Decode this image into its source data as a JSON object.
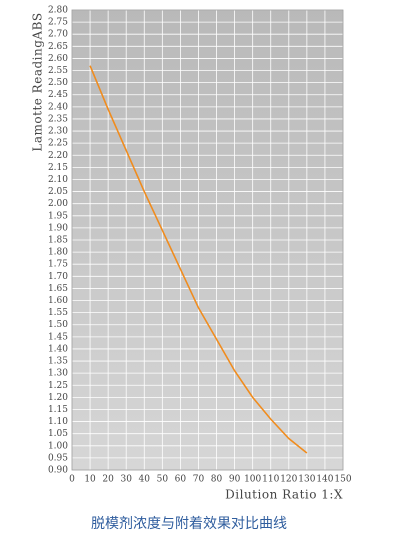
{
  "chart_data": {
    "type": "line",
    "y_label": "Lamotte ReadingABS",
    "x_label": "Dilution Ratio 1:X",
    "caption": "脱模剂浓度与附着效果对比曲线",
    "series": [
      {
        "color": "#f08c1e",
        "x": [
          10,
          20,
          30,
          40,
          50,
          60,
          70,
          80,
          90,
          100,
          110,
          120,
          130
        ],
        "values": [
          2.57,
          2.39,
          2.22,
          2.05,
          1.89,
          1.73,
          1.57,
          1.44,
          1.31,
          1.2,
          1.11,
          1.03,
          0.97
        ]
      }
    ],
    "xlim": [
      0,
      150
    ],
    "xticks": [
      0,
      10,
      20,
      30,
      40,
      50,
      60,
      70,
      80,
      90,
      100,
      110,
      120,
      130,
      140,
      150
    ],
    "ylim": [
      0.9,
      2.8
    ],
    "yticks": [
      {
        "value": 0.9,
        "label": "0.90"
      },
      {
        "value": 0.95,
        "label": "0.95"
      },
      {
        "value": 1.0,
        "label": "1.00"
      },
      {
        "value": 1.05,
        "label": "1.05"
      },
      {
        "value": 1.1,
        "label": "1.10"
      },
      {
        "value": 1.15,
        "label": "1.15"
      },
      {
        "value": 1.2,
        "label": "1.20"
      },
      {
        "value": 1.25,
        "label": "1.25"
      },
      {
        "value": 1.3,
        "label": "1.30"
      },
      {
        "value": 1.35,
        "label": "1.35"
      },
      {
        "value": 1.4,
        "label": "1.40"
      },
      {
        "value": 1.45,
        "label": "1.45"
      },
      {
        "value": 1.5,
        "label": "1.50"
      },
      {
        "value": 1.55,
        "label": "1.55"
      },
      {
        "value": 1.6,
        "label": "1.60"
      },
      {
        "value": 1.65,
        "label": "1.65"
      },
      {
        "value": 1.7,
        "label": "1.70"
      },
      {
        "value": 1.75,
        "label": "1.75"
      },
      {
        "value": 1.8,
        "label": "1.80"
      },
      {
        "value": 1.85,
        "label": "1.85"
      },
      {
        "value": 1.9,
        "label": "1.90"
      },
      {
        "value": 1.95,
        "label": "1.95"
      },
      {
        "value": 2.0,
        "label": "2.00"
      },
      {
        "value": 2.05,
        "label": "2.05"
      },
      {
        "value": 2.1,
        "label": "2.10"
      },
      {
        "value": 2.15,
        "label": "2.15"
      },
      {
        "value": 2.2,
        "label": "2.20"
      },
      {
        "value": 2.25,
        "label": "2.25"
      },
      {
        "value": 2.3,
        "label": "2.30"
      },
      {
        "value": 2.35,
        "label": "2.35"
      },
      {
        "value": 2.4,
        "label": "2.40"
      },
      {
        "value": 2.45,
        "label": "2.45"
      },
      {
        "value": 2.5,
        "label": "2.50"
      },
      {
        "value": 2.55,
        "label": "2.55"
      },
      {
        "value": 2.6,
        "label": "2.60"
      },
      {
        "value": 2.65,
        "label": "2.65"
      },
      {
        "value": 2.7,
        "label": "2.70"
      },
      {
        "value": 2.75,
        "label": "2.75"
      },
      {
        "value": 2.8,
        "label": "2.80"
      }
    ],
    "grid": true
  }
}
